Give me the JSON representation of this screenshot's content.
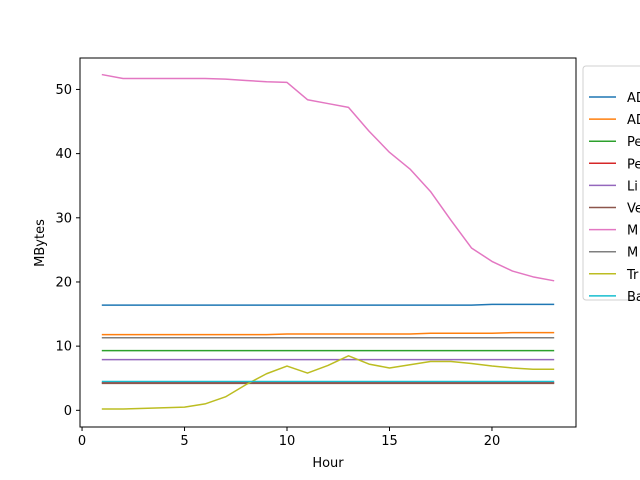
{
  "chart_data": {
    "type": "line",
    "xlabel": "Hour",
    "ylabel": "MBytes",
    "xlim": [
      -0.1,
      24.1
    ],
    "ylim": [
      -2.6,
      54.9
    ],
    "xticks": [
      0,
      5,
      10,
      15,
      20
    ],
    "yticks": [
      0,
      10,
      20,
      30,
      40,
      50
    ],
    "grid": false,
    "legend_placement": "right (partially clipped)",
    "x": [
      1,
      2,
      3,
      4,
      5,
      6,
      7,
      8,
      9,
      10,
      11,
      12,
      13,
      14,
      15,
      16,
      17,
      18,
      19,
      20,
      21,
      22,
      23
    ],
    "series": [
      {
        "name": "AD",
        "color": "#1f77b4",
        "values": [
          16.4,
          16.4,
          16.4,
          16.4,
          16.4,
          16.4,
          16.4,
          16.4,
          16.4,
          16.4,
          16.4,
          16.4,
          16.4,
          16.4,
          16.4,
          16.4,
          16.4,
          16.4,
          16.4,
          16.5,
          16.5,
          16.5,
          16.5
        ]
      },
      {
        "name": "AD",
        "color": "#ff7f0e",
        "values": [
          11.8,
          11.8,
          11.8,
          11.8,
          11.8,
          11.8,
          11.8,
          11.8,
          11.8,
          11.9,
          11.9,
          11.9,
          11.9,
          11.9,
          11.9,
          11.9,
          12.0,
          12.0,
          12.0,
          12.0,
          12.1,
          12.1,
          12.1
        ]
      },
      {
        "name": "Pe",
        "color": "#2ca02c",
        "values": [
          9.3,
          9.3,
          9.3,
          9.3,
          9.3,
          9.3,
          9.3,
          9.3,
          9.3,
          9.3,
          9.3,
          9.3,
          9.3,
          9.3,
          9.3,
          9.3,
          9.3,
          9.3,
          9.3,
          9.3,
          9.3,
          9.3,
          9.3
        ]
      },
      {
        "name": "Pe",
        "color": "#d62728",
        "values": [
          4.3,
          4.3,
          4.3,
          4.3,
          4.3,
          4.3,
          4.3,
          4.3,
          4.3,
          4.3,
          4.3,
          4.3,
          4.3,
          4.3,
          4.3,
          4.3,
          4.3,
          4.3,
          4.3,
          4.3,
          4.3,
          4.3,
          4.3
        ]
      },
      {
        "name": "Li",
        "color": "#9467bd",
        "values": [
          7.9,
          7.9,
          7.9,
          7.9,
          7.9,
          7.9,
          7.9,
          7.9,
          7.9,
          7.9,
          7.9,
          7.9,
          7.9,
          7.9,
          7.9,
          7.9,
          7.9,
          7.9,
          7.9,
          7.9,
          7.9,
          7.9,
          7.9
        ]
      },
      {
        "name": "Ve",
        "color": "#8c564b",
        "values": [
          4.2,
          4.2,
          4.2,
          4.2,
          4.2,
          4.2,
          4.2,
          4.2,
          4.2,
          4.2,
          4.2,
          4.2,
          4.2,
          4.2,
          4.2,
          4.2,
          4.2,
          4.2,
          4.2,
          4.2,
          4.2,
          4.2,
          4.2
        ]
      },
      {
        "name": "M",
        "color": "#e377c2",
        "values": [
          52.3,
          51.7,
          51.7,
          51.7,
          51.7,
          51.7,
          51.6,
          51.4,
          51.2,
          51.1,
          48.4,
          47.8,
          47.2,
          43.5,
          40.2,
          37.6,
          34.1,
          29.6,
          25.3,
          23.2,
          21.7,
          20.8,
          20.2
        ]
      },
      {
        "name": "M",
        "color": "#7f7f7f",
        "values": [
          11.3,
          11.3,
          11.3,
          11.3,
          11.3,
          11.3,
          11.3,
          11.3,
          11.3,
          11.3,
          11.3,
          11.3,
          11.3,
          11.3,
          11.3,
          11.3,
          11.3,
          11.3,
          11.3,
          11.3,
          11.3,
          11.3,
          11.3
        ]
      },
      {
        "name": "Tr",
        "color": "#bcbd22",
        "values": [
          0.2,
          0.2,
          0.3,
          0.4,
          0.5,
          1.0,
          2.1,
          4.0,
          5.7,
          6.9,
          5.8,
          7.0,
          8.5,
          7.2,
          6.6,
          7.1,
          7.6,
          7.6,
          7.3,
          6.9,
          6.6,
          6.4,
          6.4
        ]
      },
      {
        "name": "Ba",
        "color": "#17becf",
        "values": [
          4.5,
          4.5,
          4.5,
          4.5,
          4.5,
          4.5,
          4.5,
          4.5,
          4.5,
          4.5,
          4.5,
          4.5,
          4.5,
          4.5,
          4.5,
          4.5,
          4.5,
          4.5,
          4.5,
          4.5,
          4.5,
          4.5,
          4.5
        ]
      }
    ]
  }
}
